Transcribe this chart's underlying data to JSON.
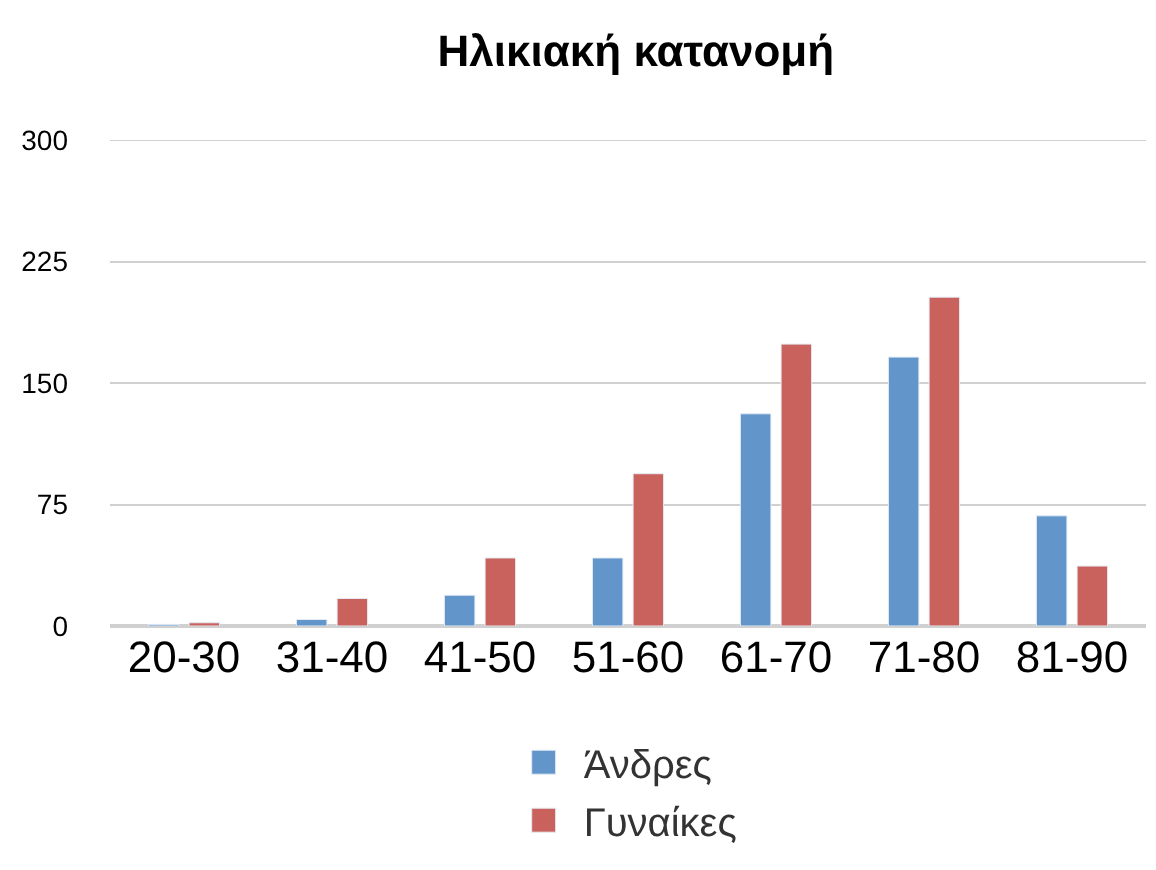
{
  "chart_data": {
    "type": "bar",
    "title": "Ηλικιακή κατανομή",
    "categories": [
      "20-30",
      "31-40",
      "41-50",
      "51-60",
      "61-70",
      "71-80",
      "81-90"
    ],
    "series": [
      {
        "name": "Άνδρες",
        "color": "#6295c9",
        "values": [
          1,
          4,
          19,
          42,
          131,
          166,
          68
        ]
      },
      {
        "name": "Γυναίκες",
        "color": "#c9625d",
        "values": [
          2,
          17,
          42,
          94,
          174,
          203,
          37
        ]
      }
    ],
    "ylim": [
      0,
      300
    ],
    "yticks": [
      0,
      75,
      150,
      225,
      300
    ],
    "grid": "y",
    "legend": "bottom"
  }
}
